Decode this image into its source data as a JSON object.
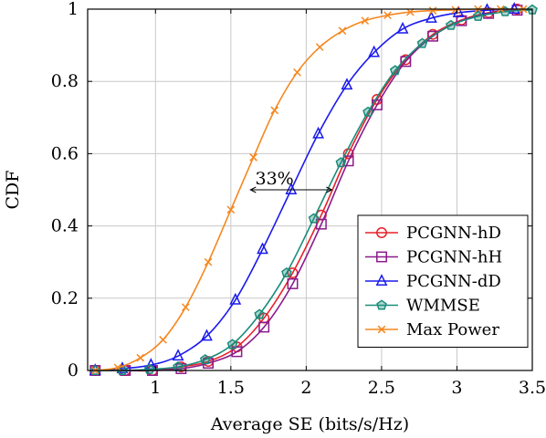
{
  "chart_data": {
    "type": "line",
    "xlabel": "Average SE (bits/s/Hz)",
    "ylabel": "CDF",
    "xlim": [
      0.55,
      3.5
    ],
    "ylim": [
      0,
      1
    ],
    "xticks": [
      1,
      1.5,
      2,
      2.5,
      3,
      3.5
    ],
    "xtick_labels": [
      "1",
      "1.5",
      "2",
      "2.5",
      "3",
      "3.5"
    ],
    "yticks": [
      0,
      0.2,
      0.4,
      0.6,
      0.8,
      1
    ],
    "ytick_labels": [
      "0",
      "0.2",
      "0.4",
      "0.6",
      "0.8",
      "1"
    ],
    "grid": true,
    "legend_position": "bottom-right",
    "series": [
      {
        "name": "PCGNN-hD",
        "color": "#e8202a",
        "marker": "circle",
        "x": [
          0.6,
          0.8,
          0.98,
          1.17,
          1.35,
          1.54,
          1.72,
          1.91,
          2.1,
          2.28,
          2.47,
          2.66,
          2.84,
          3.03,
          3.21,
          3.4
        ],
        "y": [
          0.0,
          0.0,
          0.0,
          0.01,
          0.025,
          0.065,
          0.145,
          0.27,
          0.43,
          0.6,
          0.75,
          0.86,
          0.93,
          0.97,
          0.99,
          1.0
        ]
      },
      {
        "name": "PCGNN-hH",
        "color": "#8b1a8b",
        "marker": "square",
        "x": [
          0.6,
          0.8,
          0.98,
          1.17,
          1.35,
          1.54,
          1.72,
          1.91,
          2.1,
          2.28,
          2.47,
          2.66,
          2.84,
          3.03,
          3.21,
          3.4
        ],
        "y": [
          0.0,
          0.0,
          0.0,
          0.005,
          0.02,
          0.052,
          0.12,
          0.24,
          0.405,
          0.58,
          0.735,
          0.855,
          0.925,
          0.968,
          0.988,
          0.997
        ]
      },
      {
        "name": "PCGNN-dD",
        "color": "#1a1aee",
        "marker": "triangle",
        "x": [
          0.6,
          0.78,
          0.97,
          1.15,
          1.34,
          1.53,
          1.71,
          1.9,
          2.08,
          2.27,
          2.45,
          2.64,
          2.83,
          3.01,
          3.2,
          3.38
        ],
        "y": [
          0.0,
          0.005,
          0.015,
          0.04,
          0.095,
          0.195,
          0.335,
          0.5,
          0.655,
          0.79,
          0.88,
          0.945,
          0.975,
          0.99,
          0.997,
          1.0
        ]
      },
      {
        "name": "WMMSE",
        "color": "#1a8c7a",
        "marker": "pentagon",
        "x": [
          0.6,
          0.78,
          0.96,
          1.15,
          1.33,
          1.51,
          1.69,
          1.87,
          2.05,
          2.23,
          2.41,
          2.59,
          2.77,
          2.96,
          3.14,
          3.32,
          3.5
        ],
        "y": [
          0.0,
          0.0,
          0.003,
          0.01,
          0.03,
          0.072,
          0.155,
          0.27,
          0.42,
          0.575,
          0.715,
          0.83,
          0.905,
          0.955,
          0.98,
          0.993,
          0.998
        ]
      },
      {
        "name": "Max Power",
        "color": "#f5871f",
        "marker": "x",
        "x": [
          0.6,
          0.75,
          0.9,
          1.05,
          1.2,
          1.35,
          1.5,
          1.65,
          1.79,
          1.94,
          2.09,
          2.24,
          2.39,
          2.54,
          2.69,
          2.84,
          2.99,
          3.14,
          3.29,
          3.44
        ],
        "y": [
          0.0,
          0.008,
          0.035,
          0.085,
          0.175,
          0.3,
          0.445,
          0.59,
          0.72,
          0.825,
          0.895,
          0.94,
          0.968,
          0.983,
          0.992,
          0.996,
          0.998,
          1.0,
          1.0,
          1.0
        ]
      }
    ],
    "annotations": [
      {
        "text": "33%",
        "x": 1.85,
        "y": 0.5,
        "arrow_from_x": 1.63,
        "arrow_to_x": 2.17,
        "arrow_y": 0.5
      }
    ]
  }
}
